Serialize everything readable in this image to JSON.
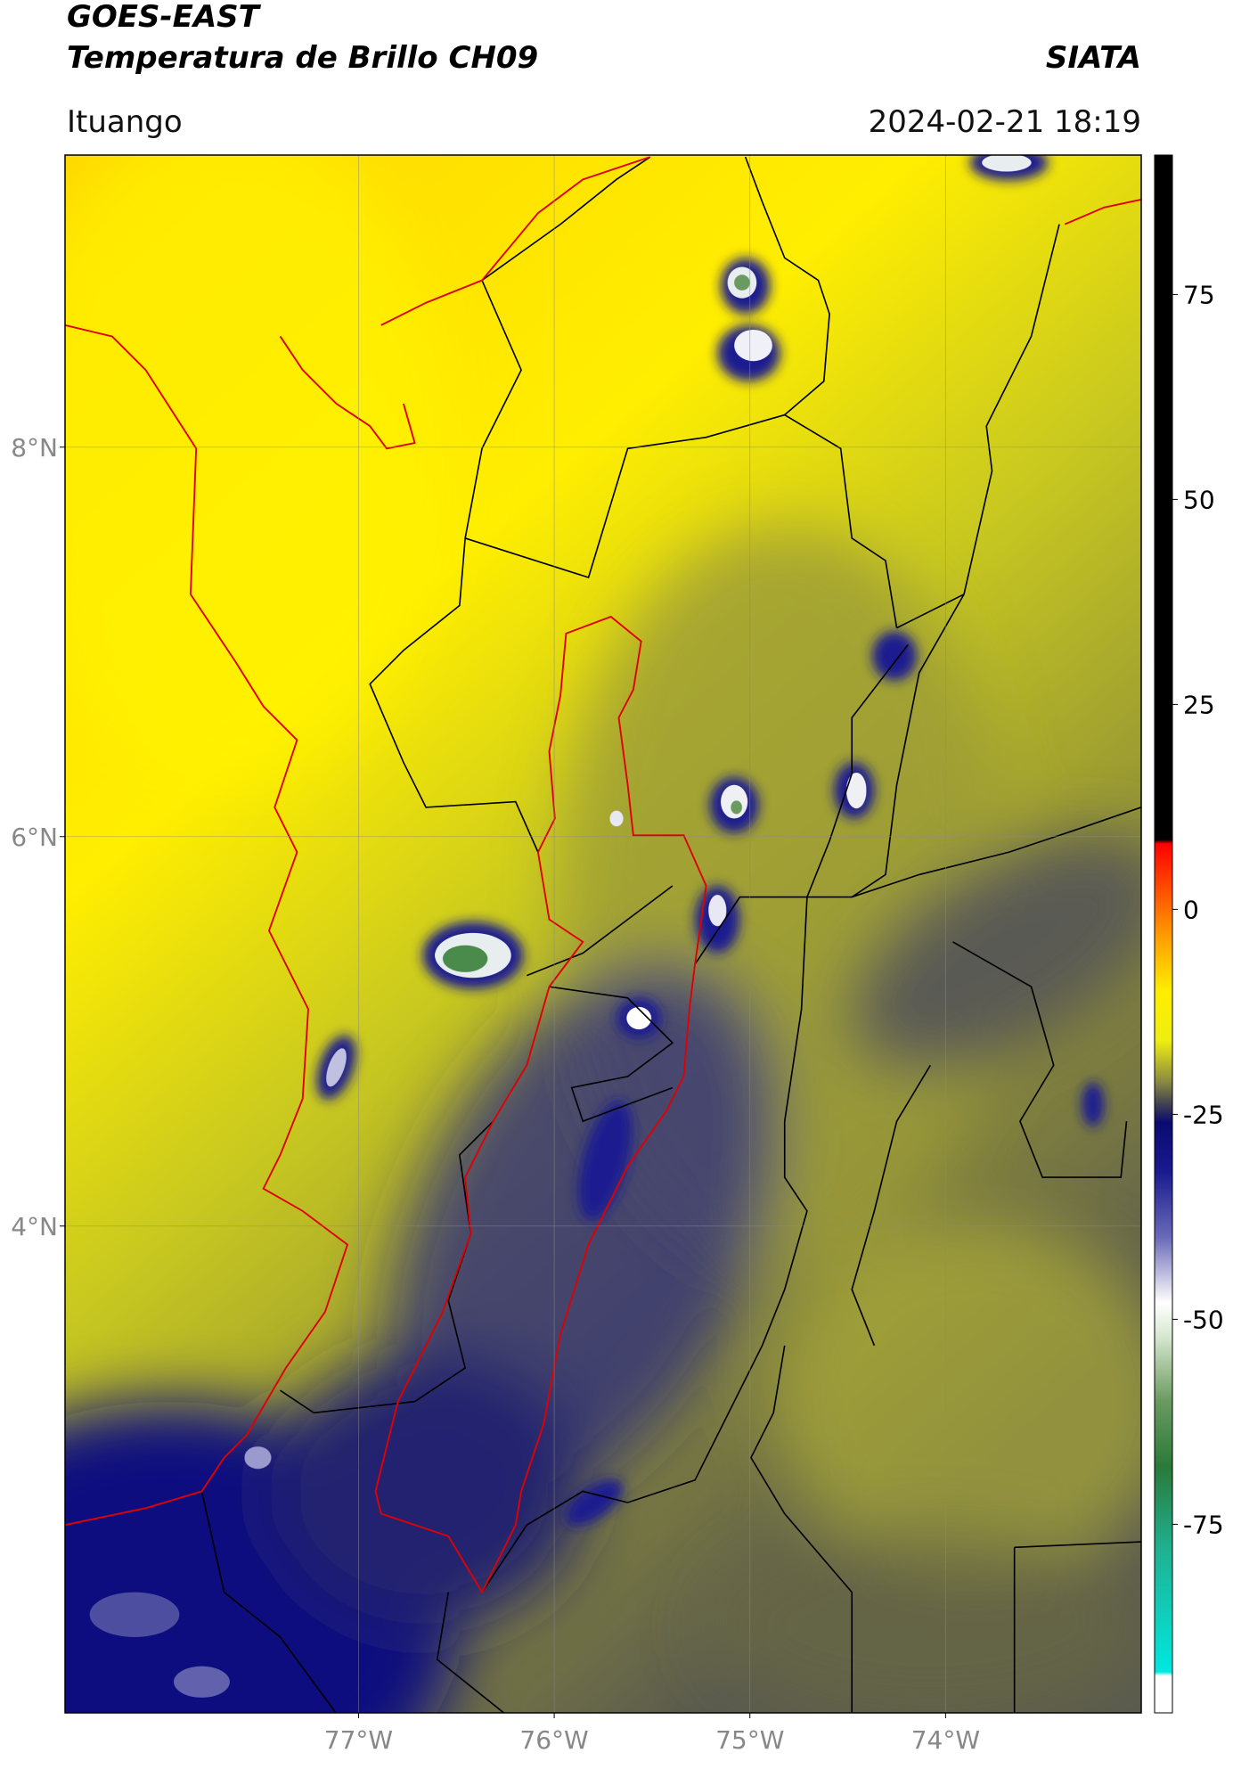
{
  "title": "GOES-EAST",
  "subtitle": "Temperatura de Brillo CH09",
  "brand": "SIATA",
  "location": "Ituango",
  "timestamp": "2024-02-21 18:19",
  "map": {
    "xlim": [
      -78.5,
      -73
    ],
    "ylim": [
      1.5,
      9.5
    ],
    "grid": true,
    "xticks": [
      {
        "value": -77,
        "label": "77°W"
      },
      {
        "value": -76,
        "label": "76°W"
      },
      {
        "value": -75,
        "label": "75°W"
      },
      {
        "value": -74,
        "label": "74°W"
      }
    ],
    "yticks": [
      {
        "value": 4,
        "label": "4°N"
      },
      {
        "value": 6,
        "label": "6°N"
      },
      {
        "value": 8,
        "label": "8°N"
      }
    ]
  },
  "colorbar": {
    "clim": [
      -98,
      92
    ],
    "ticks": [
      -75,
      -50,
      -25,
      0,
      25,
      50,
      75
    ],
    "colormap": [
      {
        "value": 92,
        "color": "#000000"
      },
      {
        "value": 8.5,
        "color": "#000000"
      },
      {
        "value": 8,
        "color": "#ff0000"
      },
      {
        "value": -3,
        "color": "#ff9900"
      },
      {
        "value": -10,
        "color": "#ffee00"
      },
      {
        "value": -16,
        "color": "#eeee10"
      },
      {
        "value": -21,
        "color": "#8a8a40"
      },
      {
        "value": -24,
        "color": "#3a3a55"
      },
      {
        "value": -26,
        "color": "#0a0a70"
      },
      {
        "value": -32,
        "color": "#1a1a90"
      },
      {
        "value": -40,
        "color": "#6a6ab8"
      },
      {
        "value": -48,
        "color": "#ffffff"
      },
      {
        "value": -52,
        "color": "#d8e8d0"
      },
      {
        "value": -60,
        "color": "#6a9a60"
      },
      {
        "value": -68,
        "color": "#2a7a3a"
      },
      {
        "value": -78,
        "color": "#20b090"
      },
      {
        "value": -93,
        "color": "#00e8e0"
      },
      {
        "value": -93.5,
        "color": "#ffffff"
      },
      {
        "value": -98,
        "color": "#ffffff"
      }
    ]
  }
}
